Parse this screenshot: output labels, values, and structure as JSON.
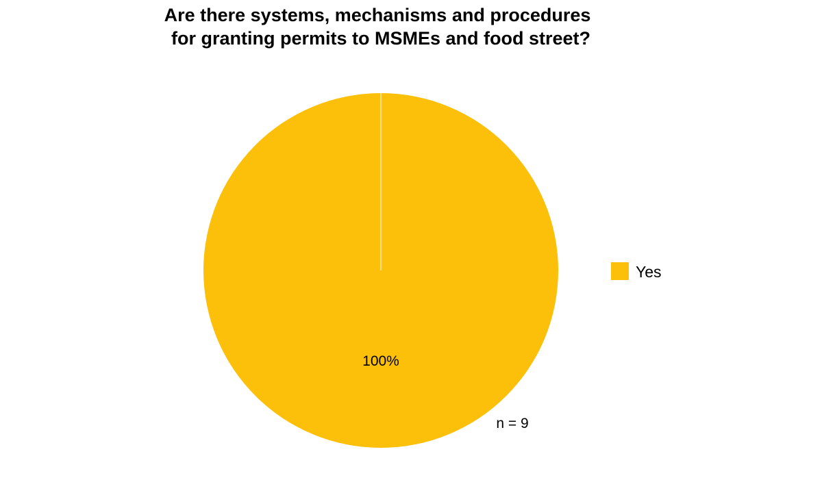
{
  "chart_data": {
    "type": "pie",
    "title": [
      "Are there systems, mechanisms and procedures",
      "for granting permits to MSMEs and food street?"
    ],
    "categories": [
      "Yes"
    ],
    "values": [
      100
    ],
    "value_labels": [
      "100%"
    ],
    "colors": [
      "#FCC00A"
    ],
    "legend": {
      "entries": [
        "Yes"
      ],
      "position": "right"
    },
    "annotation": "n = 9"
  }
}
